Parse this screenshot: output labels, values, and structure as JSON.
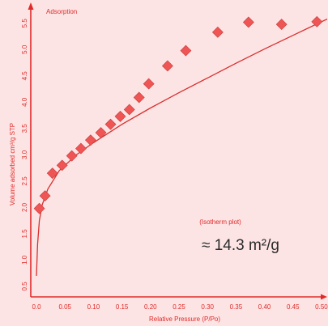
{
  "chart_data": {
    "type": "scatter",
    "xlabel": "Relative Pressure (P/Po)",
    "ylabel": "Volume adsorbed cm³/g STP",
    "xlim": [
      -0.01,
      0.51
    ],
    "ylim": [
      0.3,
      5.85
    ],
    "x_ticks": [
      "0.0",
      "0.05",
      "0.10",
      "0.15",
      "0.20",
      "0.25",
      "0.30",
      "0.35",
      "0.40",
      "0.45",
      "0.50"
    ],
    "x_tick_values": [
      0.0,
      0.05,
      0.1,
      0.15,
      0.2,
      0.25,
      0.3,
      0.35,
      0.4,
      0.45,
      0.5
    ],
    "y_ticks": [
      "0.5",
      "1.0",
      "1.5",
      "2.0",
      "2.5",
      "3.0",
      "3.5",
      "4.0",
      "4.5",
      "5.0",
      "5.5"
    ],
    "y_tick_values": [
      0.5,
      1.0,
      1.5,
      2.0,
      2.5,
      3.0,
      3.5,
      4.0,
      4.5,
      5.0,
      5.5
    ],
    "grid": false,
    "series": [
      {
        "name": "Adsorption",
        "x": [
          0.005,
          0.015,
          0.028,
          0.045,
          0.062,
          0.078,
          0.095,
          0.113,
          0.13,
          0.147,
          0.163,
          0.18,
          0.197,
          0.23,
          0.262,
          0.318,
          0.372,
          0.43,
          0.492
        ],
        "y": [
          1.98,
          2.22,
          2.65,
          2.8,
          2.98,
          3.12,
          3.28,
          3.42,
          3.58,
          3.73,
          3.86,
          4.09,
          4.35,
          4.69,
          4.98,
          5.33,
          5.52,
          5.48,
          5.53
        ],
        "marker": "diamond",
        "color": "#f05555"
      }
    ],
    "fit_curve": {
      "x": [
        0.0,
        0.002,
        0.005,
        0.01,
        0.02,
        0.04,
        0.07,
        0.1,
        0.15,
        0.2,
        0.25,
        0.3,
        0.35,
        0.4,
        0.45,
        0.5,
        0.51
      ],
      "y": [
        0.7,
        1.3,
        1.75,
        2.05,
        2.35,
        2.7,
        3.0,
        3.23,
        3.58,
        3.89,
        4.18,
        4.46,
        4.74,
        5.01,
        5.27,
        5.53,
        5.58
      ],
      "color": "#d92f2f"
    }
  },
  "annotations": {
    "method": "(Isotherm plot)",
    "result": "≈ 14.3 m²/g"
  },
  "colors": {
    "background": "#fde4e4",
    "axis": "#e02a2a",
    "marker_fill": "#f05555",
    "marker_stroke": "#c63a3a"
  }
}
